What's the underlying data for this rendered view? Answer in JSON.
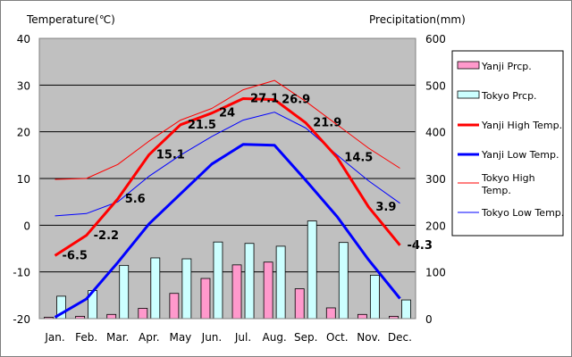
{
  "chart_data": {
    "type": "bar-line-combo",
    "left_axis_title": "Temperature(℃)",
    "right_axis_title": "Precipitation(mm)",
    "left_ylim": [
      -20,
      40
    ],
    "right_ylim": [
      0,
      600
    ],
    "left_ticks": [
      "40",
      "30",
      "20",
      "10",
      "0",
      "-10",
      "-20"
    ],
    "right_ticks": [
      "600",
      "500",
      "400",
      "300",
      "200",
      "100",
      "0"
    ],
    "categories": [
      "Jan.",
      "Feb.",
      "Mar.",
      "Apr.",
      "May",
      "Jun.",
      "Jul.",
      "Aug.",
      "Sep.",
      "Oct.",
      "Nov.",
      "Dec."
    ],
    "grid": true,
    "legend_position": "right",
    "bars": [
      {
        "name": "Yanji Prcp.",
        "color": "#ff99cc",
        "values": [
          3,
          5,
          9,
          22,
          54,
          86,
          115,
          121,
          64,
          23,
          9,
          5
        ]
      },
      {
        "name": "Tokyo Prcp.",
        "color": "#ccffff",
        "values": [
          48,
          60,
          114,
          130,
          128,
          164,
          161,
          155,
          209,
          163,
          93,
          40
        ]
      }
    ],
    "lines": [
      {
        "name": "Yanji High Temp.",
        "color": "#ff0000",
        "width": 3,
        "values": [
          -6.5,
          -2.2,
          5.6,
          15.1,
          21.5,
          24,
          27.1,
          26.9,
          21.9,
          14.5,
          3.9,
          -4.3
        ]
      },
      {
        "name": "Yanji Low Temp.",
        "color": "#0000ff",
        "width": 3,
        "values": [
          -19.7,
          -15.8,
          -8,
          0.3,
          6.7,
          13.1,
          17.3,
          17.1,
          9.6,
          1.8,
          -7.4,
          -15.7
        ]
      },
      {
        "name": "Tokyo High Temp.",
        "color": "#ff0000",
        "width": 1,
        "values": [
          9.8,
          10,
          13,
          18,
          22.5,
          25,
          29,
          31,
          26.5,
          21.5,
          16.5,
          12.2
        ]
      },
      {
        "name": "Tokyo Low Temp.",
        "color": "#0000ff",
        "width": 1,
        "values": [
          2,
          2.5,
          5,
          10.5,
          15,
          19,
          22.5,
          24.2,
          20.8,
          15,
          9.5,
          4.7
        ]
      }
    ],
    "data_labels": {
      "series": "Yanji High Temp.",
      "labels": [
        "-6.5",
        "-2.2",
        "5.6",
        "15.1",
        "21.5",
        "24",
        "27.1",
        "26.9",
        "21.9",
        "14.5",
        "3.9",
        "-4.3"
      ]
    }
  }
}
